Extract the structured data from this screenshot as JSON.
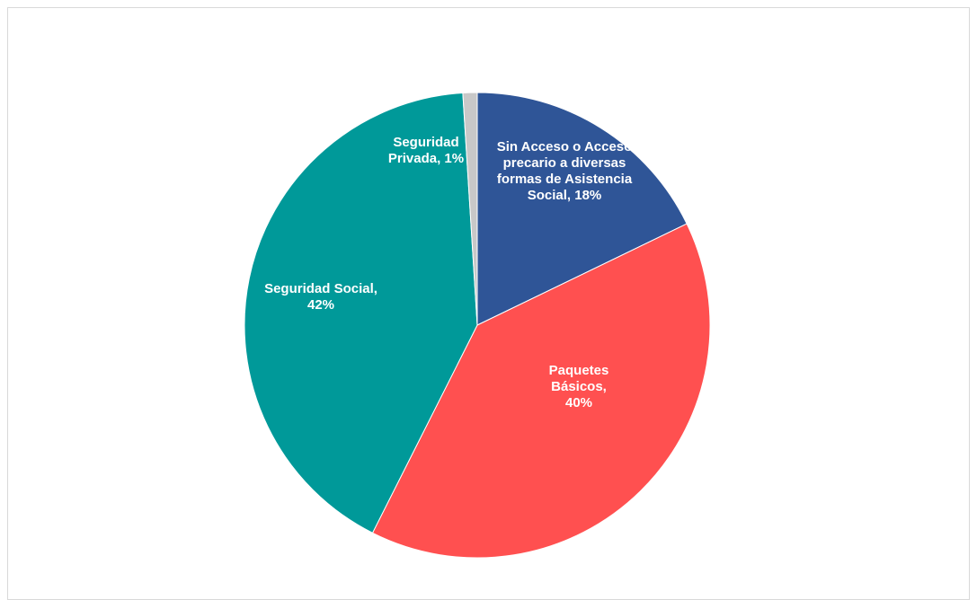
{
  "chart_data": {
    "type": "pie",
    "title": "",
    "start_angle_deg": 0,
    "direction": "clockwise",
    "slices": [
      {
        "label_lines": [
          "Sin Acceso o Acceso",
          "precario a diversas",
          "formas de Asistencia",
          "Social, 18%"
        ],
        "value": 18,
        "color": "#2F5597"
      },
      {
        "label_lines": [
          "Paquetes",
          "Básicos,",
          "40%"
        ],
        "value": 40,
        "color": "#FF5050"
      },
      {
        "label_lines": [
          "Seguridad Social,",
          "42%"
        ],
        "value": 42,
        "color": "#009999"
      },
      {
        "label_lines": [
          "Seguridad",
          "Privada, 1%"
        ],
        "value": 1,
        "color": "#C8C8C8"
      }
    ]
  }
}
